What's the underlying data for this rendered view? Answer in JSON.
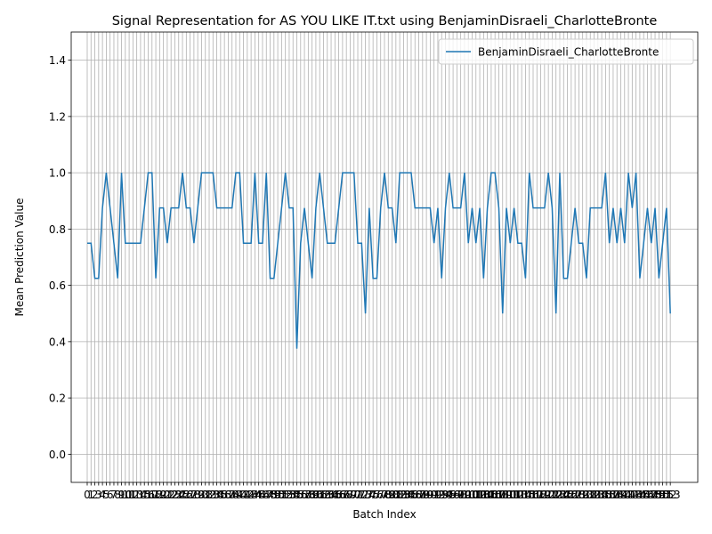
{
  "chart_data": {
    "type": "line",
    "title": "Signal Representation for AS YOU LIKE IT.txt using BenjaminDisraeli_CharlotteBronte",
    "xlabel": "Batch Index",
    "ylabel": "Mean Prediction Value",
    "x": [
      0,
      1,
      2,
      3,
      4,
      5,
      6,
      7,
      8,
      9,
      10,
      11,
      12,
      13,
      14,
      15,
      16,
      17,
      18,
      19,
      20,
      21,
      22,
      23,
      24,
      25,
      26,
      27,
      28,
      29,
      30,
      31,
      32,
      33,
      34,
      35,
      36,
      37,
      38,
      39,
      40,
      41,
      42,
      43,
      44,
      45,
      46,
      47,
      48,
      49,
      50,
      51,
      52,
      53,
      54,
      55,
      56,
      57,
      58,
      59,
      60,
      61,
      62,
      63,
      64,
      65,
      66,
      67,
      68,
      69,
      70,
      71,
      72,
      73,
      74,
      75,
      76,
      77,
      78,
      79,
      80,
      81,
      82,
      83,
      84,
      85,
      86,
      87,
      88,
      89,
      90,
      91,
      92,
      93,
      94,
      95,
      96,
      97,
      98,
      99,
      100,
      101,
      102,
      103,
      104,
      105,
      106,
      107,
      108,
      109,
      110,
      111,
      112,
      113,
      114,
      115,
      116,
      117,
      118,
      119,
      120,
      121,
      122,
      123,
      124,
      125,
      126,
      127,
      128,
      129,
      130,
      131,
      132,
      133,
      134,
      135,
      136,
      137,
      138,
      139,
      140,
      141,
      142,
      143,
      144,
      145,
      146,
      147,
      148,
      149,
      150,
      151,
      152,
      153
    ],
    "series": [
      {
        "name": "BenjaminDisraeli_CharlotteBronte",
        "color": "#1f77b4",
        "values": [
          0.75,
          0.75,
          0.625,
          0.625,
          0.875,
          1,
          0.875,
          0.75,
          0.625,
          1,
          0.75,
          0.75,
          0.75,
          0.75,
          0.75,
          0.875,
          1,
          1,
          0.625,
          0.875,
          0.875,
          0.75,
          0.875,
          0.875,
          0.875,
          1,
          0.875,
          0.875,
          0.75,
          0.875,
          1,
          1,
          1,
          1,
          0.875,
          0.875,
          0.875,
          0.875,
          0.875,
          1,
          1,
          0.75,
          0.75,
          0.75,
          1,
          0.75,
          0.75,
          1,
          0.625,
          0.625,
          0.75,
          0.875,
          1,
          0.875,
          0.875,
          0.375,
          0.75,
          0.875,
          0.75,
          0.625,
          0.875,
          1,
          0.875,
          0.75,
          0.75,
          0.75,
          0.875,
          1,
          1,
          1,
          1,
          0.75,
          0.75,
          0.5,
          0.875,
          0.625,
          0.625,
          0.875,
          1,
          0.875,
          0.875,
          0.75,
          1,
          1,
          1,
          1,
          0.875,
          0.875,
          0.875,
          0.875,
          0.875,
          0.75,
          0.875,
          0.625,
          0.875,
          1,
          0.875,
          0.875,
          0.875,
          1,
          0.75,
          0.875,
          0.75,
          0.875,
          0.625,
          0.875,
          1,
          1,
          0.875,
          0.5,
          0.875,
          0.75,
          0.875,
          0.75,
          0.75,
          0.625,
          1,
          0.875,
          0.875,
          0.875,
          0.875,
          1,
          0.875,
          0.5,
          1,
          0.625,
          0.625,
          0.75,
          0.875,
          0.75,
          0.75,
          0.625,
          0.875,
          0.875,
          0.875,
          0.875,
          1,
          0.75,
          0.875,
          0.75,
          0.875,
          0.75,
          1,
          0.875,
          1,
          0.625,
          0.75,
          0.875,
          0.75,
          0.875,
          0.625,
          0.75,
          0.875,
          0.5
        ]
      }
    ],
    "xlim": [
      -4.2,
      160.2
    ],
    "xticks": [
      0,
      1,
      2,
      3,
      4,
      5,
      6,
      7,
      8,
      9,
      10,
      11,
      12,
      13,
      14,
      15,
      16,
      17,
      18,
      19,
      20,
      21,
      22,
      23,
      24,
      25,
      26,
      27,
      28,
      29,
      30,
      31,
      32,
      33,
      34,
      35,
      36,
      37,
      38,
      39,
      40,
      41,
      42,
      43,
      44,
      45,
      46,
      47,
      48,
      49,
      50,
      51,
      52,
      53,
      54,
      55,
      56,
      57,
      58,
      59,
      60,
      61,
      62,
      63,
      64,
      65,
      66,
      67,
      68,
      69,
      70,
      71,
      72,
      73,
      74,
      75,
      76,
      77,
      78,
      79,
      80,
      81,
      82,
      83,
      84,
      85,
      86,
      87,
      88,
      89,
      90,
      91,
      92,
      93,
      94,
      95,
      96,
      97,
      98,
      99,
      100,
      101,
      102,
      103,
      104,
      105,
      106,
      107,
      108,
      109,
      110,
      111,
      112,
      113,
      114,
      115,
      116,
      117,
      118,
      119,
      120,
      121,
      122,
      123,
      124,
      125,
      126,
      127,
      128,
      129,
      130,
      131,
      132,
      133,
      134,
      135,
      136,
      137,
      138,
      139,
      140,
      141,
      142,
      143,
      144,
      145,
      146,
      147,
      148,
      149,
      150,
      151,
      152,
      153
    ],
    "ylim": [
      -0.1,
      1.5
    ],
    "yticks": [
      {
        "value": 0,
        "label": "0.0"
      },
      {
        "value": 0.2,
        "label": "0.2"
      },
      {
        "value": 0.4,
        "label": "0.4"
      },
      {
        "value": 0.6,
        "label": "0.6"
      },
      {
        "value": 0.8,
        "label": "0.8"
      },
      {
        "value": 1,
        "label": "1.0"
      },
      {
        "value": 1.2,
        "label": "1.2"
      },
      {
        "value": 1.4,
        "label": "1.4"
      }
    ],
    "grid": true,
    "legend": "upper right"
  }
}
